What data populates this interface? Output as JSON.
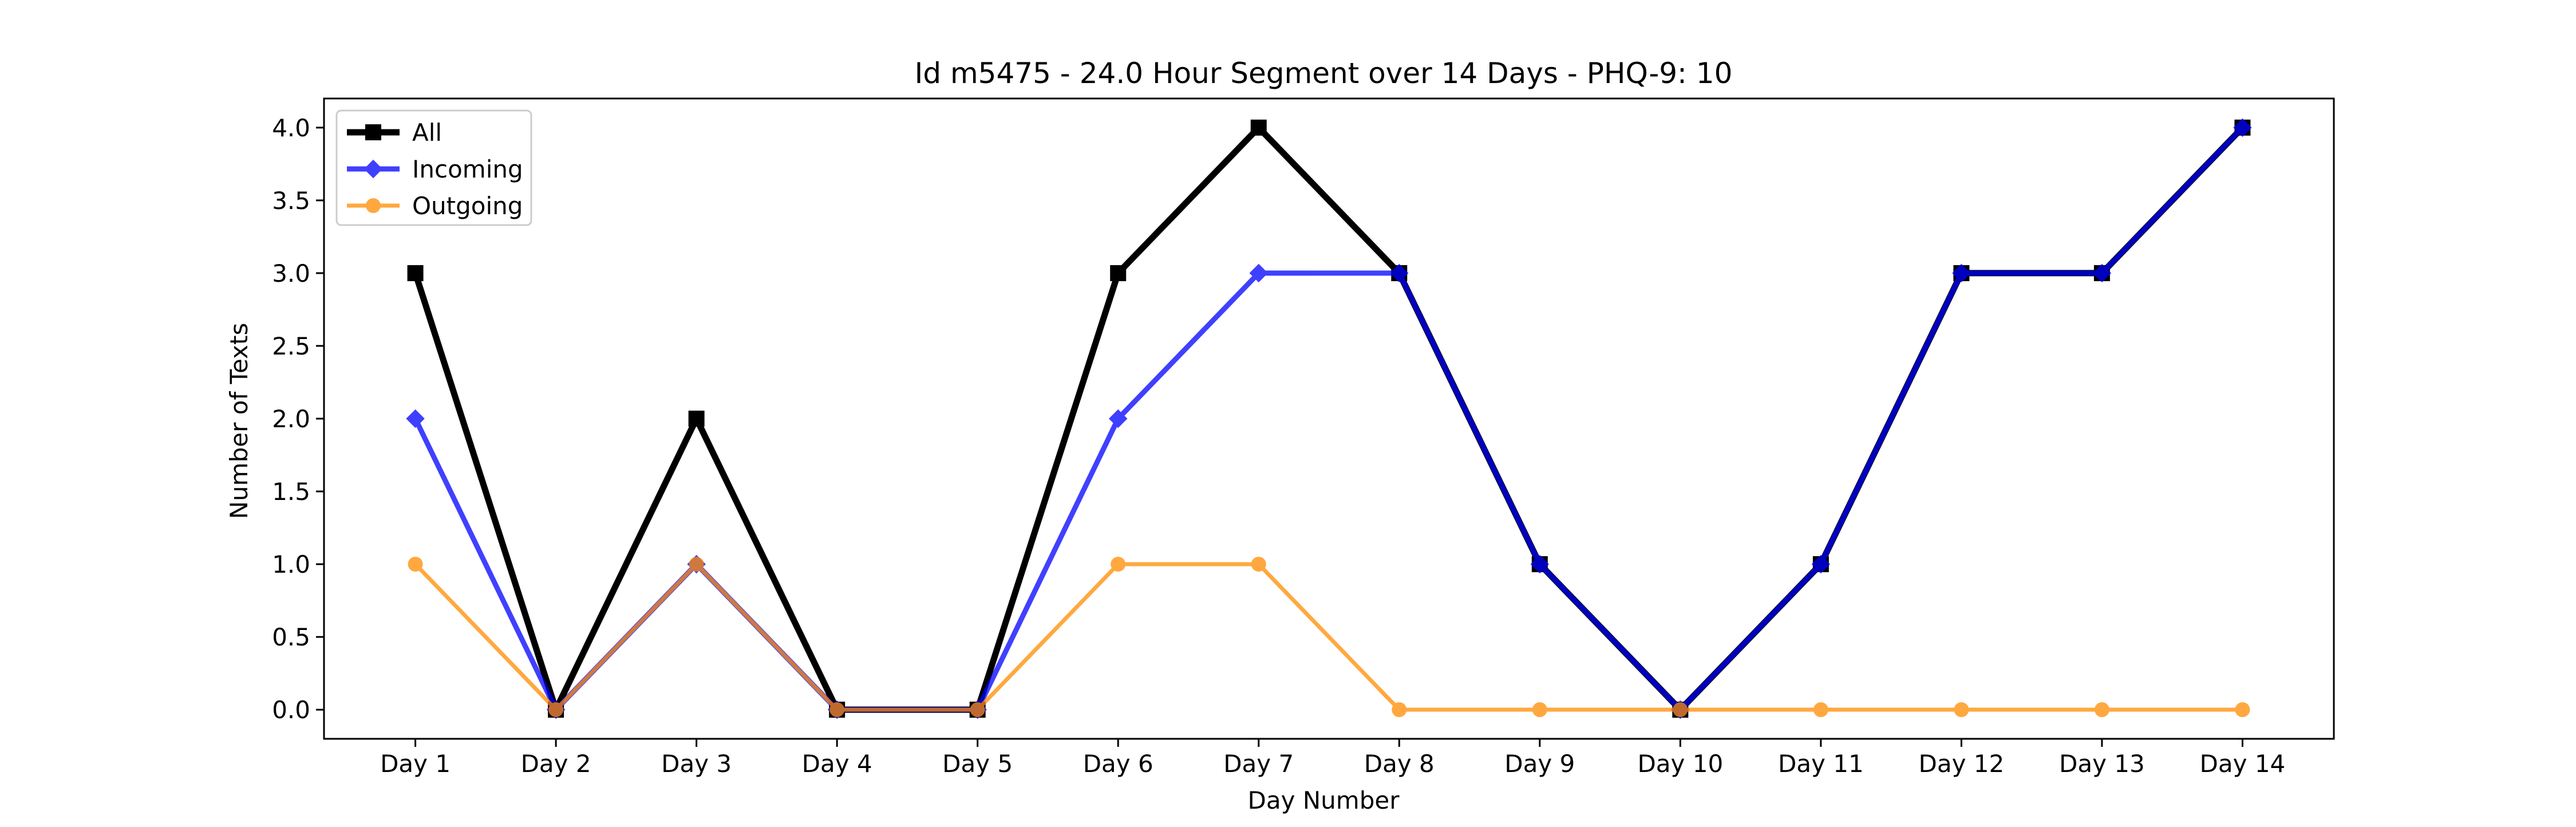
{
  "chart_data": {
    "type": "line",
    "title": "Id m5475 - 24.0 Hour Segment over 14 Days - PHQ-9: 10",
    "xlabel": "Day Number",
    "ylabel": "Number of Texts",
    "categories": [
      "Day 1",
      "Day 2",
      "Day 3",
      "Day 4",
      "Day 5",
      "Day 6",
      "Day 7",
      "Day 8",
      "Day 9",
      "Day 10",
      "Day 11",
      "Day 12",
      "Day 13",
      "Day 14"
    ],
    "ylim": [
      -0.2,
      4.2
    ],
    "yticks": [
      0.0,
      0.5,
      1.0,
      1.5,
      2.0,
      2.5,
      3.0,
      3.5,
      4.0
    ],
    "grid": false,
    "legend_position": "top-left",
    "series": [
      {
        "name": "All",
        "color": "#000000",
        "marker": "square",
        "values": [
          3,
          0,
          2,
          0,
          0,
          3,
          4,
          3,
          1,
          0,
          1,
          3,
          3,
          4
        ]
      },
      {
        "name": "Incoming",
        "color": "#0000ff",
        "marker": "diamond",
        "values": [
          2,
          0,
          1,
          0,
          0,
          2,
          3,
          3,
          1,
          0,
          1,
          3,
          3,
          4
        ]
      },
      {
        "name": "Outgoing",
        "color": "#ff8c00",
        "marker": "circle",
        "values": [
          1,
          0,
          1,
          0,
          0,
          1,
          1,
          0,
          0,
          0,
          0,
          0,
          0,
          0
        ]
      }
    ]
  }
}
